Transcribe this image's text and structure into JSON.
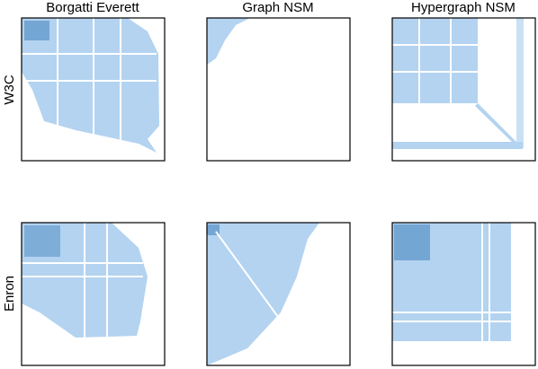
{
  "columns": [
    "Borgatti Everett",
    "Graph NSM",
    "Hypergraph NSM"
  ],
  "rows": [
    "W3C",
    "Enron"
  ]
}
